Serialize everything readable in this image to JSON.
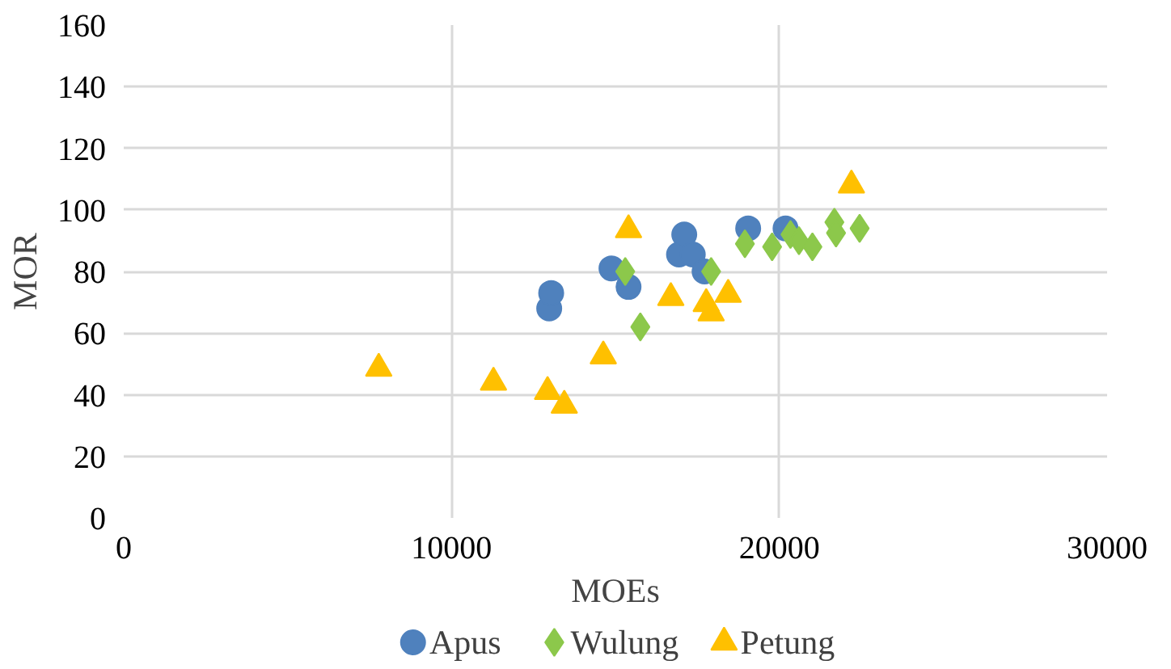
{
  "chart_data": {
    "type": "scatter",
    "xlabel": "MOEs",
    "ylabel": "MOR",
    "xlim": [
      0,
      30000
    ],
    "ylim": [
      0,
      160
    ],
    "xticks": [
      0,
      10000,
      20000,
      30000
    ],
    "yticks": [
      0,
      20,
      40,
      60,
      80,
      100,
      120,
      140,
      160
    ],
    "grid": true,
    "legend": "bottom",
    "series": [
      {
        "name": "Apus",
        "color": "#4f81bd",
        "marker": "circle",
        "x": [
          12980,
          13040,
          14880,
          15400,
          16940,
          17100,
          17360,
          17720,
          19050,
          20190
        ],
        "values": [
          68,
          73,
          81,
          75,
          85.5,
          92,
          85.5,
          80,
          94,
          94
        ]
      },
      {
        "name": "Wulung",
        "color": "#8cc84b",
        "marker": "diamond",
        "x": [
          15300,
          15760,
          17920,
          18950,
          19780,
          20340,
          20600,
          21010,
          21680,
          21730,
          22450
        ],
        "values": [
          80,
          62,
          80,
          89,
          88,
          92,
          90,
          88,
          96,
          92.5,
          94
        ]
      },
      {
        "name": "Petung",
        "color": "#ffc000",
        "marker": "triangle",
        "x": [
          7780,
          11280,
          12930,
          13440,
          14630,
          15400,
          16690,
          17770,
          17920,
          18440,
          22200
        ],
        "values": [
          48.5,
          44,
          41,
          36.5,
          52.5,
          93.5,
          71.5,
          69.5,
          66.5,
          72.5,
          108
        ]
      }
    ]
  }
}
